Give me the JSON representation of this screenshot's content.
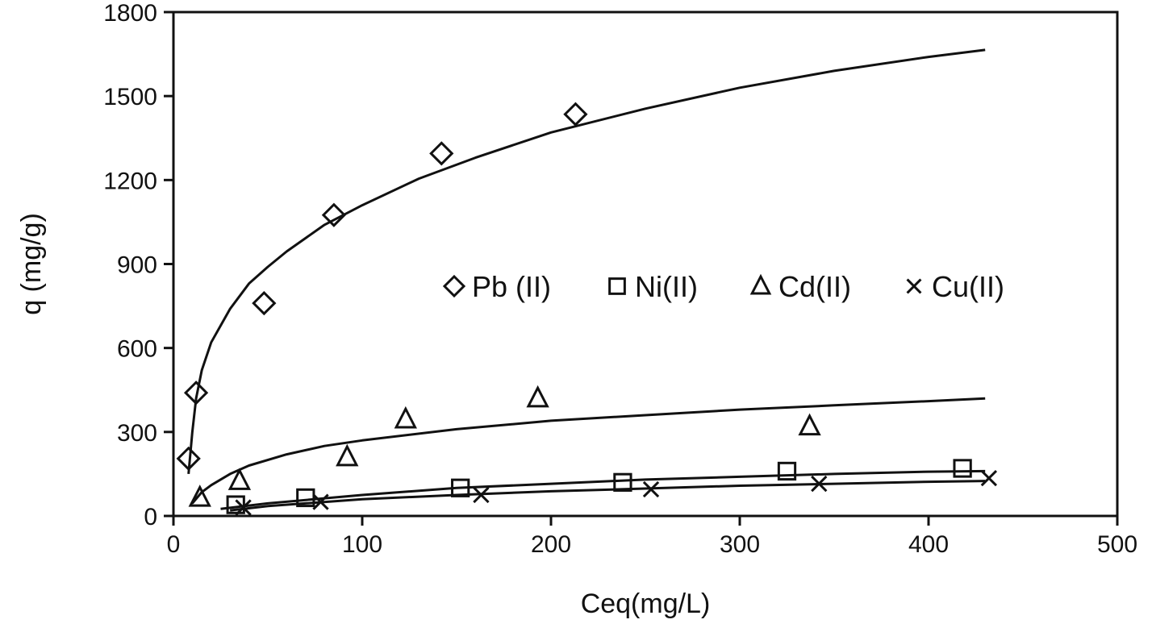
{
  "chart_data": {
    "type": "scatter",
    "title": "",
    "xlabel": "Ceq(mg/L)",
    "ylabel": "q (mg/g)",
    "xlim": [
      0,
      500
    ],
    "ylim": [
      0,
      1800
    ],
    "x_ticks": [
      0,
      100,
      200,
      300,
      400,
      500
    ],
    "y_ticks": [
      0,
      300,
      600,
      900,
      1200,
      1500,
      1800
    ],
    "x_tick_labels": [
      "0",
      "100",
      "200",
      "300",
      "400",
      "500"
    ],
    "y_tick_labels": [
      "0",
      "300",
      "600",
      "900",
      "1200",
      "1500",
      "1800"
    ],
    "grid": false,
    "legend_position": "center-right",
    "series": [
      {
        "name": "Pb (II)",
        "marker": "diamond",
        "x": [
          8,
          12,
          48,
          85,
          142,
          213
        ],
        "y": [
          205,
          440,
          760,
          1075,
          1295,
          1435
        ],
        "fit": {
          "x": [
            8,
            10,
            12,
            15,
            20,
            30,
            40,
            50,
            60,
            80,
            100,
            130,
            160,
            200,
            250,
            300,
            350,
            400,
            430
          ],
          "y": [
            150,
            300,
            420,
            520,
            620,
            740,
            830,
            890,
            945,
            1040,
            1110,
            1205,
            1280,
            1370,
            1455,
            1530,
            1590,
            1640,
            1665
          ]
        }
      },
      {
        "name": "Ni(II)",
        "marker": "square",
        "x": [
          33,
          70,
          152,
          238,
          325,
          418
        ],
        "y": [
          40,
          65,
          100,
          120,
          160,
          170
        ],
        "fit": {
          "x": [
            25,
            50,
            100,
            150,
            200,
            250,
            300,
            350,
            400,
            430
          ],
          "y": [
            25,
            45,
            75,
            100,
            115,
            130,
            140,
            150,
            158,
            160
          ]
        }
      },
      {
        "name": "Cd(II)",
        "marker": "triangle",
        "x": [
          14,
          35,
          92,
          123,
          193,
          337
        ],
        "y": [
          65,
          125,
          210,
          345,
          420,
          320
        ],
        "fit": {
          "x": [
            10,
            15,
            20,
            30,
            40,
            60,
            80,
            100,
            150,
            200,
            250,
            300,
            350,
            400,
            430
          ],
          "y": [
            45,
            85,
            110,
            150,
            180,
            220,
            250,
            270,
            310,
            340,
            360,
            380,
            395,
            410,
            420
          ]
        }
      },
      {
        "name": "Cu(II)",
        "marker": "x",
        "x": [
          37,
          78,
          163,
          253,
          342,
          432
        ],
        "y": [
          30,
          50,
          75,
          95,
          115,
          135
        ],
        "fit": {
          "x": [
            30,
            50,
            100,
            150,
            200,
            250,
            300,
            350,
            400,
            430
          ],
          "y": [
            20,
            35,
            60,
            75,
            88,
            98,
            108,
            115,
            122,
            125
          ]
        }
      }
    ]
  }
}
